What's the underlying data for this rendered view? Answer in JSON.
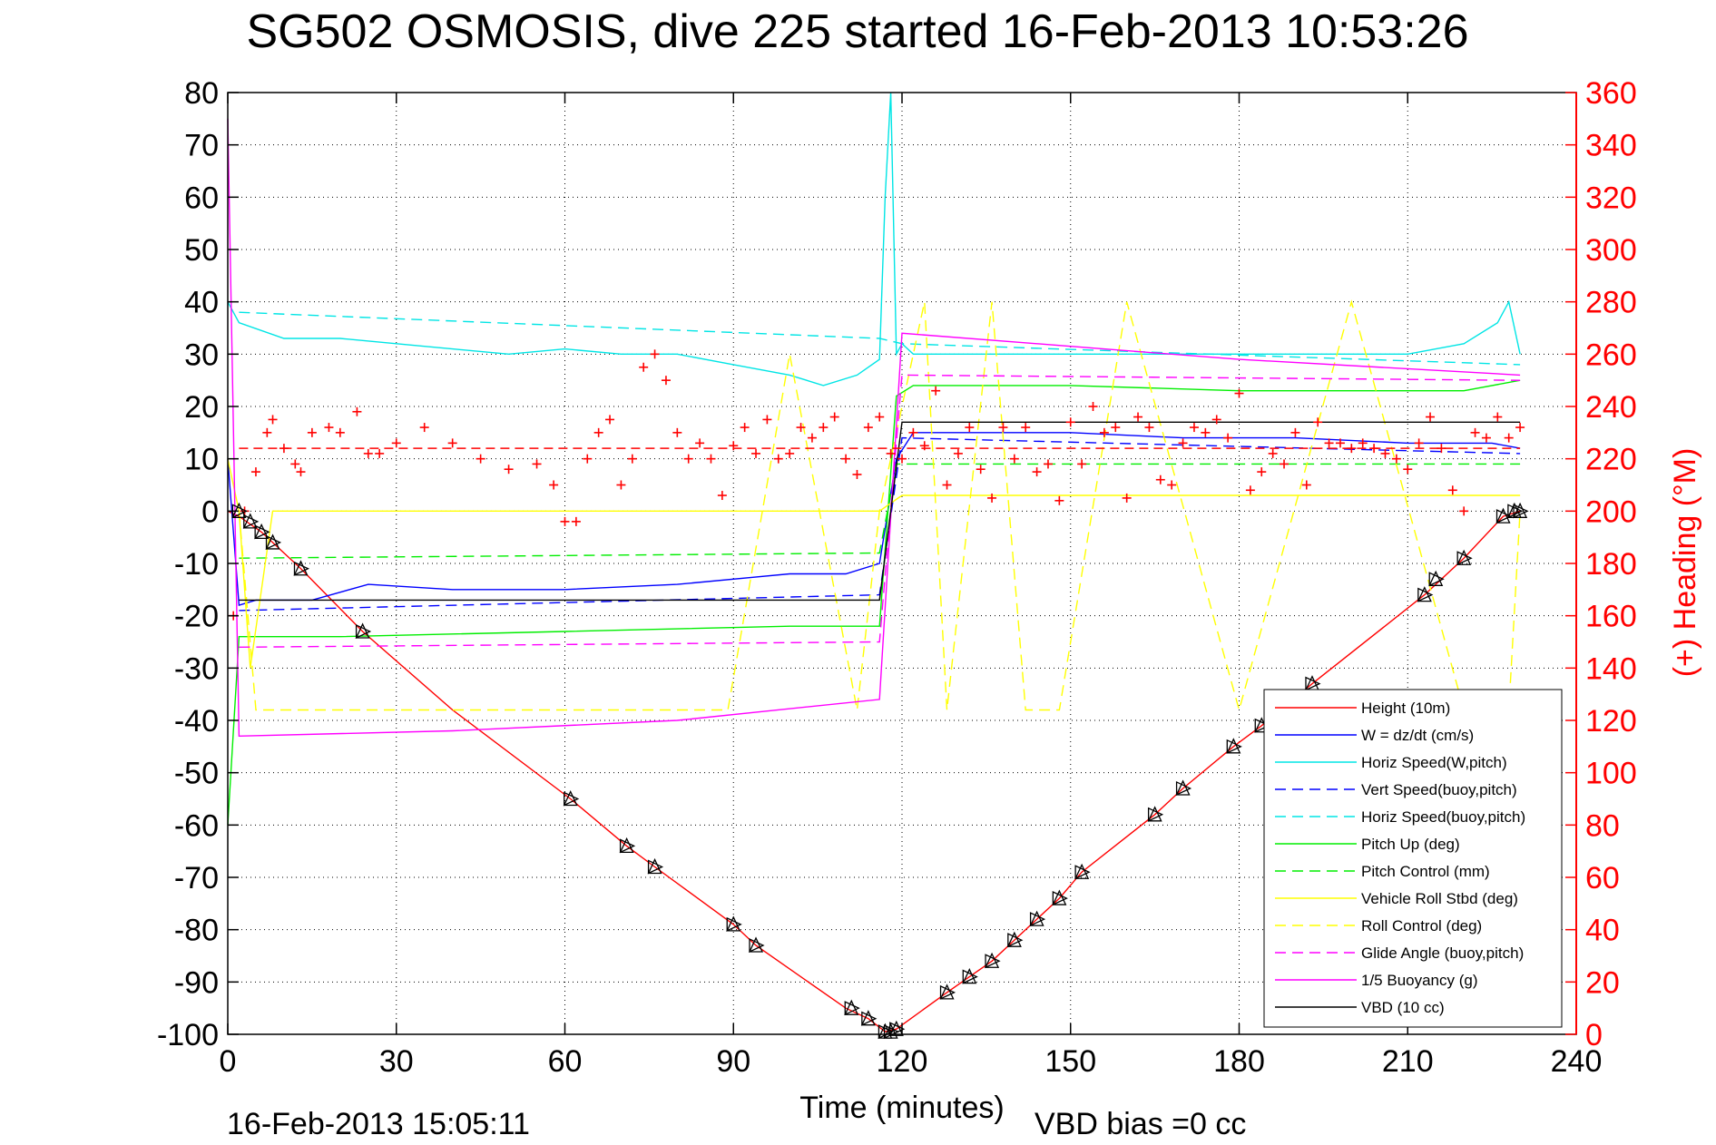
{
  "chart_data": {
    "type": "line",
    "title": "SG502 OSMOSIS, dive 225 started 16-Feb-2013 10:53:26",
    "xlabel": "Time (minutes)",
    "ylabel": "",
    "y2label": "(+) Heading (°M)",
    "xlim": [
      0,
      240
    ],
    "ylim": [
      -100,
      80
    ],
    "y2lim": [
      0,
      360
    ],
    "x_ticks": [
      0,
      30,
      60,
      90,
      120,
      150,
      180,
      210,
      240
    ],
    "y_ticks": [
      -100,
      -90,
      -80,
      -70,
      -60,
      -50,
      -40,
      -30,
      -20,
      -10,
      0,
      10,
      20,
      30,
      40,
      50,
      60,
      70,
      80
    ],
    "y2_ticks": [
      0,
      20,
      40,
      60,
      80,
      100,
      120,
      140,
      160,
      180,
      200,
      220,
      240,
      260,
      280,
      300,
      320,
      340,
      360
    ],
    "grid": true,
    "legend_position": "bottom-right",
    "footer_left": "16-Feb-2013 15:05:11",
    "footer_right": "VBD bias =0 cc",
    "series": [
      {
        "name": "Height (10m)",
        "color": "#ff0000",
        "style": "solid",
        "axis": "left",
        "x": [
          0,
          2,
          6,
          13,
          24,
          40,
          61,
          71,
          76,
          90,
          94,
          110,
          114,
          117,
          119,
          128,
          132,
          136,
          140,
          144,
          148,
          152,
          165,
          170,
          179,
          184,
          193,
          213,
          216,
          220,
          227,
          230
        ],
        "y": [
          0,
          -1,
          -4,
          -11,
          -23,
          -38,
          -55,
          -64,
          -68,
          -79,
          -83,
          -95,
          -97,
          -99.5,
          -99,
          -92,
          -89,
          -86,
          -82,
          -78,
          -74,
          -69,
          -58,
          -53,
          -45,
          -41,
          -33,
          -16,
          -13,
          -9,
          -1,
          0
        ]
      },
      {
        "name": "W = dz/dt (cm/s)",
        "color": "#0000ff",
        "style": "solid",
        "axis": "left",
        "x": [
          0,
          2,
          5,
          15,
          25,
          40,
          60,
          80,
          100,
          110,
          116,
          119,
          122,
          130,
          150,
          170,
          190,
          210,
          225,
          230
        ],
        "y": [
          10,
          -18,
          -17,
          -17,
          -14,
          -15,
          -15,
          -14,
          -12,
          -12,
          -10,
          10,
          15,
          15,
          15,
          14,
          14,
          13,
          13,
          12
        ]
      },
      {
        "name": "Horiz Speed(W,pitch)",
        "color": "#00e5e5",
        "style": "solid",
        "axis": "left",
        "x": [
          0,
          2,
          10,
          20,
          30,
          40,
          50,
          60,
          70,
          80,
          90,
          100,
          106,
          112,
          116,
          117,
          118,
          119,
          120,
          122,
          140,
          160,
          180,
          200,
          210,
          220,
          226,
          228,
          230
        ],
        "y": [
          40,
          36,
          33,
          33,
          32,
          31,
          30,
          31,
          30,
          30,
          28,
          26,
          24,
          26,
          29,
          60,
          80,
          30,
          32,
          30,
          30,
          30,
          30,
          30,
          30,
          32,
          36,
          40,
          30
        ]
      },
      {
        "name": "Vert Speed(buoy,pitch)",
        "color": "#0000ff",
        "style": "dashed",
        "axis": "left",
        "x": [
          2,
          116,
          120,
          230
        ],
        "y": [
          -19,
          -16,
          14,
          11
        ]
      },
      {
        "name": "Horiz Speed(buoy,pitch)",
        "color": "#00e5e5",
        "style": "dashed",
        "axis": "left",
        "x": [
          2,
          116,
          120,
          230
        ],
        "y": [
          38,
          33,
          32,
          28
        ]
      },
      {
        "name": "Pitch Up (deg)",
        "color": "#00ee00",
        "style": "solid",
        "axis": "left",
        "x": [
          0,
          2,
          20,
          60,
          100,
          116,
          119,
          122,
          150,
          180,
          200,
          220,
          230
        ],
        "y": [
          -60,
          -24,
          -24,
          -23,
          -22,
          -22,
          22,
          24,
          24,
          23,
          23,
          23,
          25
        ]
      },
      {
        "name": "Pitch Control (mm)",
        "color": "#00ee00",
        "style": "dashed",
        "axis": "left",
        "x": [
          2,
          116,
          119,
          230
        ],
        "y": [
          -9,
          -8,
          9,
          9
        ]
      },
      {
        "name": "Vehicle Roll Stbd (deg)",
        "color": "#ffff00",
        "style": "solid",
        "axis": "left",
        "x": [
          0,
          2,
          4,
          8,
          20,
          40,
          60,
          80,
          100,
          116,
          120,
          140,
          160,
          180,
          200,
          220,
          230
        ],
        "y": [
          10,
          0,
          -30,
          0,
          0,
          0,
          0,
          0,
          0,
          0,
          3,
          3,
          3,
          3,
          3,
          3,
          3
        ]
      },
      {
        "name": "Roll Control (deg)",
        "color": "#ffff00",
        "style": "dashed",
        "axis": "left",
        "x": [
          2,
          5,
          12,
          24,
          61,
          71,
          89,
          100,
          112,
          116,
          124,
          128,
          136,
          142,
          148,
          160,
          180,
          200,
          220,
          228,
          230
        ],
        "y": [
          0,
          -38,
          -38,
          -38,
          -38,
          -38,
          -38,
          30,
          -38,
          0,
          40,
          -38,
          40,
          -38,
          -38,
          40,
          -38,
          40,
          -38,
          -38,
          0
        ]
      },
      {
        "name": "Glide Angle (buoy,pitch)",
        "color": "#ff00ff",
        "style": "dashed",
        "axis": "left",
        "x": [
          2,
          116,
          120,
          230
        ],
        "y": [
          -26,
          -25,
          26,
          25
        ]
      },
      {
        "name": "1/5 Buoyancy (g)",
        "color": "#ff00ff",
        "style": "solid",
        "axis": "left",
        "x": [
          0,
          2,
          40,
          80,
          116,
          120,
          180,
          230
        ],
        "y": [
          75,
          -43,
          -42,
          -40,
          -36,
          34,
          29,
          26
        ]
      },
      {
        "name": "VBD (10 cc)",
        "color": "#000000",
        "style": "solid",
        "axis": "left",
        "x": [
          2,
          116,
          120,
          230
        ],
        "y": [
          -17,
          -17,
          17,
          17
        ]
      }
    ],
    "heading": {
      "name": "(+) Heading",
      "color": "#ff0000",
      "marker": "+",
      "axis": "right",
      "mean": 224,
      "x": [
        1,
        3,
        5,
        7,
        8,
        10,
        12,
        13,
        15,
        18,
        20,
        23,
        25,
        27,
        30,
        35,
        40,
        45,
        50,
        55,
        58,
        60,
        62,
        64,
        66,
        68,
        70,
        72,
        74,
        76,
        78,
        80,
        82,
        84,
        86,
        88,
        90,
        92,
        94,
        96,
        98,
        100,
        102,
        104,
        106,
        108,
        110,
        112,
        114,
        116,
        118,
        120,
        122,
        124,
        126,
        128,
        130,
        132,
        134,
        136,
        138,
        140,
        142,
        144,
        146,
        148,
        150,
        152,
        154,
        156,
        158,
        160,
        162,
        164,
        166,
        168,
        170,
        172,
        174,
        176,
        178,
        180,
        182,
        184,
        186,
        188,
        190,
        192,
        194,
        196,
        198,
        200,
        202,
        204,
        206,
        208,
        210,
        212,
        214,
        216,
        218,
        220,
        222,
        224,
        226,
        228,
        230
      ],
      "y": [
        160,
        200,
        215,
        230,
        235,
        224,
        218,
        215,
        230,
        232,
        230,
        238,
        222,
        222,
        226,
        232,
        226,
        220,
        216,
        218,
        210,
        196,
        196,
        220,
        230,
        235,
        210,
        220,
        255,
        260,
        250,
        230,
        220,
        226,
        220,
        206,
        225,
        232,
        222,
        235,
        220,
        222,
        232,
        228,
        232,
        236,
        220,
        214,
        232,
        236,
        222,
        220,
        230,
        225,
        246,
        210,
        222,
        232,
        216,
        205,
        232,
        220,
        232,
        215,
        218,
        204,
        234,
        218,
        240,
        230,
        232,
        205,
        236,
        232,
        212,
        210,
        226,
        232,
        230,
        235,
        228,
        245,
        208,
        215,
        222,
        218,
        230,
        210,
        234,
        226,
        226,
        224,
        226,
        224,
        222,
        220,
        216,
        226,
        236,
        224,
        208,
        200,
        230,
        228,
        236,
        228,
        232
      ]
    },
    "annotations": [
      {
        "label": "GC markers",
        "marker": "triangles",
        "x": [
          2,
          4,
          6,
          8,
          13,
          24,
          61,
          71,
          76,
          90,
          94,
          111,
          114,
          117,
          118,
          119,
          128,
          132,
          136,
          140,
          144,
          148,
          152,
          165,
          170,
          179,
          184,
          193,
          213,
          215,
          220,
          227,
          229,
          230
        ],
        "y": [
          0,
          -2,
          -4,
          -6,
          -11,
          -23,
          -55,
          -64,
          -68,
          -79,
          -83,
          -95,
          -97,
          -99.5,
          -99.5,
          -99,
          -92,
          -89,
          -86,
          -82,
          -78,
          -74,
          -69,
          -58,
          -53,
          -45,
          -41,
          -33,
          -16,
          -13,
          -9,
          -1,
          0,
          0
        ]
      }
    ]
  }
}
